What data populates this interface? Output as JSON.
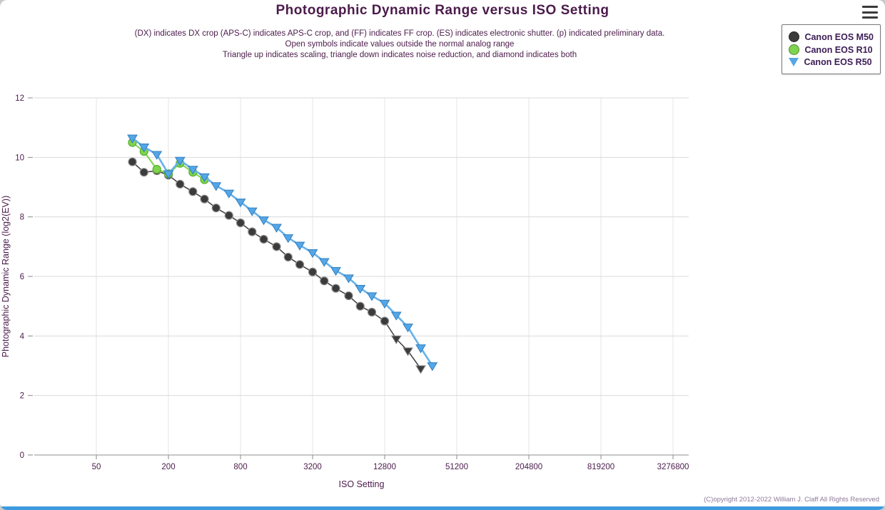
{
  "header": {
    "subtitle_lines": [
      "(DX) indicates DX crop (APS-C) indicates APS-C crop, and (FF) indicates FF crop. (ES) indicates electronic shutter. (p) indicated preliminary data.",
      "Open symbols indicate values outside the normal analog range",
      "Triangle up indicates scaling, triangle down indicates noise reduction, and diamond indicates both"
    ]
  },
  "legend": {
    "items": [
      {
        "label": "Canon EOS M50",
        "marker": "circle",
        "color": "#3b3b3b"
      },
      {
        "label": "Canon EOS R10",
        "marker": "circle",
        "color": "#7fd34f"
      },
      {
        "label": "Canon EOS R50",
        "marker": "triangle-down",
        "color": "#55a6e6"
      }
    ]
  },
  "footer": {
    "copyright": "(C)opyright 2012-2022 William J. Claff All Rights Reserved"
  },
  "chart_data": {
    "type": "line",
    "title": "Photographic Dynamic Range versus ISO Setting",
    "xlabel": "ISO Setting",
    "ylabel": "Photographic Dynamic Range (log2(EV))",
    "x_scale": "log2",
    "x_ticks": [
      50,
      200,
      800,
      3200,
      12800,
      51200,
      204800,
      819200,
      3276800
    ],
    "x_tick_labels": [
      "50",
      "200",
      "800",
      "3200",
      "12800",
      "51200",
      "204800",
      "819200",
      "3276800"
    ],
    "ylim": [
      0,
      12
    ],
    "y_ticks": [
      0,
      2,
      4,
      6,
      8,
      10,
      12
    ],
    "grid": true,
    "legend_position": "top-right",
    "series": [
      {
        "name": "Canon EOS M50",
        "marker": "circle",
        "color": "#3b3b3b",
        "marker_stroke": "#8a8a8a",
        "line_color": "#454545",
        "line_width": 1.6,
        "points": [
          [
            100,
            9.85
          ],
          [
            125,
            9.5
          ],
          [
            160,
            9.55
          ],
          [
            200,
            9.4
          ],
          [
            250,
            9.1
          ],
          [
            320,
            8.85
          ],
          [
            400,
            8.6
          ],
          [
            500,
            8.3
          ],
          [
            640,
            8.05
          ],
          [
            800,
            7.8
          ],
          [
            1000,
            7.5
          ],
          [
            1250,
            7.25
          ],
          [
            1600,
            7.0
          ],
          [
            2000,
            6.65
          ],
          [
            2500,
            6.4
          ],
          [
            3200,
            6.15
          ],
          [
            4000,
            5.85
          ],
          [
            5000,
            5.6
          ],
          [
            6400,
            5.35
          ],
          [
            8000,
            5.0
          ],
          [
            10000,
            4.8
          ],
          [
            12800,
            4.5
          ],
          [
            16000,
            3.9,
            "triangle-down"
          ],
          [
            20000,
            3.5,
            "triangle-down"
          ],
          [
            25600,
            2.9,
            "triangle-down"
          ]
        ]
      },
      {
        "name": "Canon EOS R10",
        "marker": "circle",
        "color": "#7fd34f",
        "marker_stroke": "#57b12c",
        "line_color": "#7fd34f",
        "line_width": 2,
        "points": [
          [
            100,
            10.5
          ],
          [
            125,
            10.2
          ],
          [
            160,
            9.6
          ],
          [
            200,
            9.45
          ],
          [
            250,
            9.8
          ],
          [
            320,
            9.5
          ],
          [
            400,
            9.25
          ]
        ]
      },
      {
        "name": "Canon EOS R50",
        "marker": "triangle-down",
        "color": "#55a6e6",
        "marker_stroke": "#2f7fc0",
        "line_color": "#66b1ea",
        "line_width": 2.6,
        "points": [
          [
            100,
            10.65
          ],
          [
            125,
            10.35
          ],
          [
            160,
            10.1
          ],
          [
            200,
            9.45
          ],
          [
            250,
            9.9
          ],
          [
            320,
            9.6
          ],
          [
            400,
            9.35
          ],
          [
            500,
            9.05
          ],
          [
            640,
            8.8
          ],
          [
            800,
            8.5
          ],
          [
            1000,
            8.2
          ],
          [
            1250,
            7.9
          ],
          [
            1600,
            7.65
          ],
          [
            2000,
            7.3
          ],
          [
            2500,
            7.05
          ],
          [
            3200,
            6.8
          ],
          [
            4000,
            6.5
          ],
          [
            5000,
            6.2
          ],
          [
            6400,
            5.95
          ],
          [
            8000,
            5.6
          ],
          [
            10000,
            5.35
          ],
          [
            12800,
            5.1
          ],
          [
            16000,
            4.7
          ],
          [
            20000,
            4.3
          ],
          [
            25600,
            3.6
          ],
          [
            32000,
            3.0
          ]
        ]
      }
    ]
  }
}
